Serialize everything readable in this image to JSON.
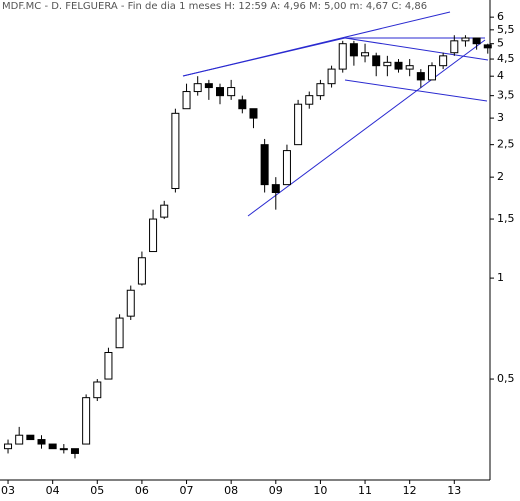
{
  "chart_data": {
    "type": "candlestick",
    "title": "MDF.MC - D. FELGUERA - Fin de dia 1 meses  H: 12:59  A: 4,96  M: 5,00  m: 4,67  C: 4,86",
    "x": [
      2003,
      2003.25,
      2003.5,
      2003.75,
      2004,
      2004.25,
      2004.5,
      2004.75,
      2005,
      2005.25,
      2005.5,
      2005.75,
      2006,
      2006.25,
      2006.5,
      2006.75,
      2007,
      2007.25,
      2007.5,
      2007.75,
      2008,
      2008.25,
      2008.5,
      2008.75,
      2009,
      2009.25,
      2009.5,
      2009.75,
      2010,
      2010.25,
      2010.5,
      2010.75,
      2011,
      2011.25,
      2011.5,
      2011.75,
      2012,
      2012.25,
      2012.5,
      2012.75,
      2013,
      2013.25,
      2013.5,
      2013.75
    ],
    "open": [
      0.31,
      0.32,
      0.34,
      0.33,
      0.32,
      0.31,
      0.31,
      0.32,
      0.44,
      0.5,
      0.62,
      0.77,
      0.96,
      1.2,
      1.52,
      1.85,
      3.2,
      3.6,
      3.8,
      3.7,
      3.5,
      3.4,
      3.2,
      2.5,
      1.9,
      1.9,
      2.5,
      3.3,
      3.5,
      3.8,
      4.2,
      5.0,
      4.6,
      4.6,
      4.3,
      4.4,
      4.2,
      4.1,
      3.9,
      4.3,
      4.7,
      5.1,
      5.2,
      4.96
    ],
    "high": [
      0.33,
      0.36,
      0.34,
      0.34,
      0.32,
      0.32,
      0.31,
      0.45,
      0.5,
      0.62,
      0.78,
      0.95,
      1.2,
      1.6,
      1.7,
      3.2,
      3.8,
      4.0,
      3.9,
      3.8,
      3.9,
      3.5,
      3.2,
      2.6,
      2.0,
      2.5,
      3.4,
      3.6,
      3.9,
      4.3,
      5.1,
      5.1,
      5.0,
      4.7,
      4.6,
      4.5,
      4.5,
      4.2,
      4.4,
      4.7,
      5.3,
      5.3,
      5.2,
      5.0
    ],
    "low": [
      0.3,
      0.32,
      0.33,
      0.31,
      0.31,
      0.3,
      0.29,
      0.32,
      0.43,
      0.5,
      0.62,
      0.75,
      0.95,
      1.2,
      1.5,
      1.8,
      3.2,
      3.5,
      3.4,
      3.3,
      3.4,
      3.1,
      2.8,
      1.8,
      1.6,
      1.9,
      2.5,
      3.2,
      3.4,
      3.7,
      4.1,
      4.3,
      4.4,
      4.0,
      4.0,
      4.1,
      4.0,
      3.7,
      3.9,
      4.2,
      4.6,
      4.9,
      4.8,
      4.67
    ],
    "close": [
      0.32,
      0.34,
      0.33,
      0.32,
      0.31,
      0.31,
      0.3,
      0.44,
      0.49,
      0.6,
      0.76,
      0.92,
      1.15,
      1.5,
      1.65,
      3.1,
      3.6,
      3.8,
      3.7,
      3.5,
      3.7,
      3.2,
      3.0,
      1.9,
      1.8,
      2.4,
      3.3,
      3.5,
      3.8,
      4.2,
      5.0,
      4.6,
      4.7,
      4.3,
      4.4,
      4.2,
      4.3,
      3.9,
      4.3,
      4.6,
      5.1,
      5.2,
      5.0,
      4.86
    ],
    "xlim": [
      2002.82,
      2013.8
    ],
    "xticks": [
      {
        "value": 2003,
        "label": "03"
      },
      {
        "value": 2004,
        "label": "04"
      },
      {
        "value": 2005,
        "label": "05"
      },
      {
        "value": 2006,
        "label": "06"
      },
      {
        "value": 2007,
        "label": "07"
      },
      {
        "value": 2008,
        "label": "08"
      },
      {
        "value": 2009,
        "label": "09"
      },
      {
        "value": 2010,
        "label": "10"
      },
      {
        "value": 2011,
        "label": "11"
      },
      {
        "value": 2012,
        "label": "12"
      },
      {
        "value": 2013,
        "label": "13"
      }
    ],
    "ylim": [
      0.25,
      6.75
    ],
    "yscale": "log",
    "yticks": [
      {
        "value": 0.5,
        "label": "0,5"
      },
      1,
      {
        "value": 1.5,
        "label": "1,5"
      },
      2,
      {
        "value": 2.5,
        "label": "2,5"
      },
      3,
      {
        "value": 3.5,
        "label": "3,5"
      },
      4,
      {
        "value": 4.5,
        "label": "4,5"
      },
      5,
      {
        "value": 5.5,
        "label": "5,5"
      },
      6
    ],
    "up_color": "#ffffff",
    "down_color": "#000000"
  }
}
